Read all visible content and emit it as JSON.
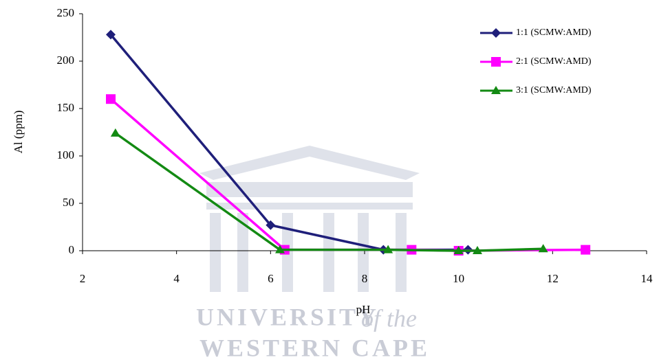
{
  "chart_data": {
    "type": "line",
    "x_label": "pH",
    "y_label": "Al (ppm)",
    "xlim": [
      2,
      14
    ],
    "xticks": [
      2,
      4,
      6,
      8,
      10,
      12,
      14
    ],
    "ylim": [
      0,
      250
    ],
    "yticks": [
      0,
      50,
      100,
      150,
      200,
      250
    ],
    "grid": false,
    "legend": "top-right",
    "series": [
      {
        "name": "1:1 (SCMW:AMD)",
        "color": "#1f1f7a",
        "marker": "diamond",
        "x": [
          2.6,
          6.0,
          8.4,
          10.2
        ],
        "values": [
          228,
          27,
          1,
          1
        ]
      },
      {
        "name": "2:1 (SCMW:AMD)",
        "color": "#ff00ff",
        "marker": "square",
        "x": [
          2.6,
          6.3,
          9.0,
          10.0,
          12.7
        ],
        "values": [
          160,
          1,
          1,
          0,
          1
        ]
      },
      {
        "name": "3:1 (SCMW:AMD)",
        "color": "#138a13",
        "marker": "triangle",
        "x": [
          2.7,
          6.2,
          8.5,
          10.0,
          10.4,
          11.8
        ],
        "values": [
          124,
          1,
          1,
          0,
          0,
          2
        ]
      }
    ],
    "watermark": [
      "UNIVERSITY",
      "of the",
      "WESTERN CAPE"
    ]
  }
}
